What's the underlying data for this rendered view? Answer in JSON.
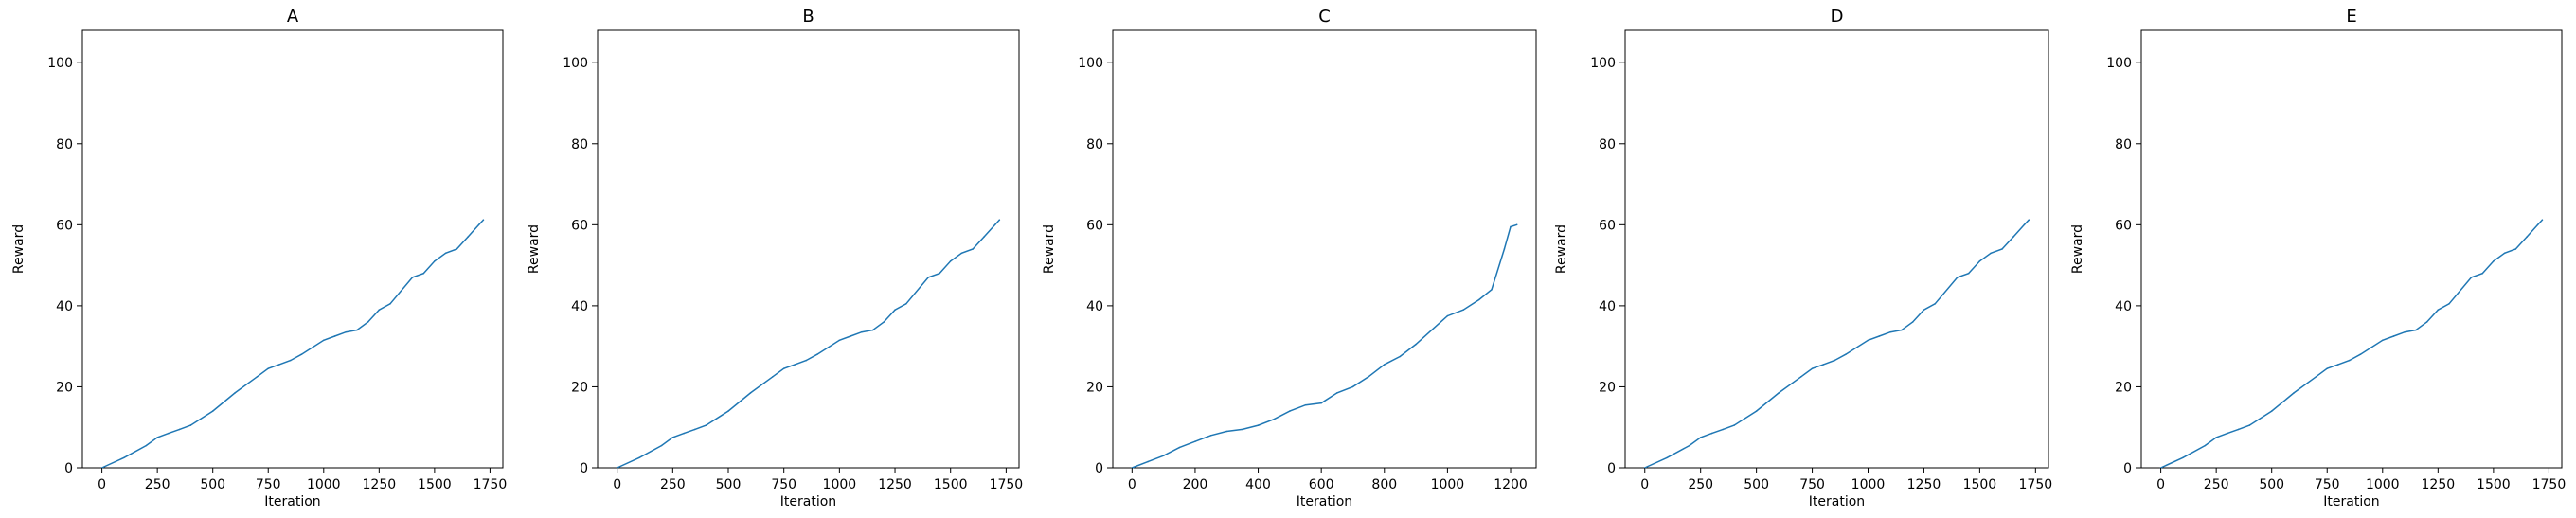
{
  "chart_data": [
    {
      "type": "line",
      "title": "A",
      "xlabel": "Iteration",
      "ylabel": "Reward",
      "xlim": [
        -88,
        1808
      ],
      "ylim": [
        0,
        108
      ],
      "xticks": [
        0,
        250,
        500,
        750,
        1000,
        1250,
        1500,
        1750
      ],
      "yticks": [
        0,
        20,
        40,
        60,
        80,
        100
      ],
      "grid": false,
      "legend": "none",
      "series": [
        {
          "color": "#1f77b4",
          "x": [
            0,
            100,
            200,
            250,
            300,
            350,
            400,
            500,
            600,
            700,
            750,
            800,
            850,
            900,
            1000,
            1050,
            1100,
            1150,
            1200,
            1250,
            1300,
            1400,
            1450,
            1500,
            1550,
            1600,
            1650,
            1700,
            1720
          ],
          "y": [
            0,
            2.5,
            5.5,
            7.5,
            8.5,
            9.5,
            10.5,
            14,
            18.5,
            22.5,
            24.5,
            25.5,
            26.5,
            28,
            31.5,
            32.5,
            33.5,
            34,
            36,
            39,
            40.5,
            47,
            48,
            51,
            53,
            54,
            57,
            60,
            61.2
          ]
        }
      ]
    },
    {
      "type": "line",
      "title": "B",
      "xlabel": "Iteration",
      "ylabel": "Reward",
      "xlim": [
        -88,
        1808
      ],
      "ylim": [
        0,
        108
      ],
      "xticks": [
        0,
        250,
        500,
        750,
        1000,
        1250,
        1500,
        1750
      ],
      "yticks": [
        0,
        20,
        40,
        60,
        80,
        100
      ],
      "grid": false,
      "legend": "none",
      "series": [
        {
          "color": "#1f77b4",
          "x": [
            0,
            100,
            200,
            250,
            300,
            350,
            400,
            500,
            600,
            700,
            750,
            800,
            850,
            900,
            1000,
            1050,
            1100,
            1150,
            1200,
            1250,
            1300,
            1400,
            1450,
            1500,
            1550,
            1600,
            1650,
            1700,
            1720
          ],
          "y": [
            0,
            2.5,
            5.5,
            7.5,
            8.5,
            9.5,
            10.5,
            14,
            18.5,
            22.5,
            24.5,
            25.5,
            26.5,
            28,
            31.5,
            32.5,
            33.5,
            34,
            36,
            39,
            40.5,
            47,
            48,
            51,
            53,
            54,
            57,
            60,
            61.2
          ]
        }
      ]
    },
    {
      "type": "line",
      "title": "C",
      "xlabel": "Iteration",
      "ylabel": "Reward",
      "xlim": [
        -61,
        1281
      ],
      "ylim": [
        0,
        108
      ],
      "xticks": [
        0,
        200,
        400,
        600,
        800,
        1000,
        1200
      ],
      "yticks": [
        0,
        20,
        40,
        60,
        80,
        100
      ],
      "grid": false,
      "legend": "none",
      "series": [
        {
          "color": "#1f77b4",
          "x": [
            0,
            50,
            100,
            150,
            200,
            250,
            300,
            350,
            400,
            450,
            500,
            550,
            600,
            650,
            700,
            750,
            800,
            850,
            900,
            950,
            1000,
            1050,
            1100,
            1140,
            1180,
            1200,
            1220
          ],
          "y": [
            0,
            1.5,
            3,
            5,
            6.5,
            8,
            9,
            9.5,
            10.5,
            12,
            14,
            15.5,
            16,
            18.5,
            20,
            22.5,
            25.5,
            27.5,
            30.5,
            34,
            37.5,
            39,
            41.5,
            44,
            54,
            59.5,
            60
          ]
        }
      ]
    },
    {
      "type": "line",
      "title": "D",
      "xlabel": "Iteration",
      "ylabel": "Reward",
      "xlim": [
        -88,
        1808
      ],
      "ylim": [
        0,
        108
      ],
      "xticks": [
        0,
        250,
        500,
        750,
        1000,
        1250,
        1500,
        1750
      ],
      "yticks": [
        0,
        20,
        40,
        60,
        80,
        100
      ],
      "grid": false,
      "legend": "none",
      "series": [
        {
          "color": "#1f77b4",
          "x": [
            0,
            100,
            200,
            250,
            300,
            350,
            400,
            500,
            600,
            700,
            750,
            800,
            850,
            900,
            1000,
            1050,
            1100,
            1150,
            1200,
            1250,
            1300,
            1400,
            1450,
            1500,
            1550,
            1600,
            1650,
            1700,
            1720
          ],
          "y": [
            0,
            2.5,
            5.5,
            7.5,
            8.5,
            9.5,
            10.5,
            14,
            18.5,
            22.5,
            24.5,
            25.5,
            26.5,
            28,
            31.5,
            32.5,
            33.5,
            34,
            36,
            39,
            40.5,
            47,
            48,
            51,
            53,
            54,
            57,
            60,
            61.2
          ]
        }
      ]
    },
    {
      "type": "line",
      "title": "E",
      "xlabel": "Iteration",
      "ylabel": "Reward",
      "xlim": [
        -88,
        1808
      ],
      "ylim": [
        0,
        108
      ],
      "xticks": [
        0,
        250,
        500,
        750,
        1000,
        1250,
        1500,
        1750
      ],
      "yticks": [
        0,
        20,
        40,
        60,
        80,
        100
      ],
      "grid": false,
      "legend": "none",
      "series": [
        {
          "color": "#1f77b4",
          "x": [
            0,
            100,
            200,
            250,
            300,
            350,
            400,
            500,
            600,
            700,
            750,
            800,
            850,
            900,
            1000,
            1050,
            1100,
            1150,
            1200,
            1250,
            1300,
            1400,
            1450,
            1500,
            1550,
            1600,
            1650,
            1700,
            1720
          ],
          "y": [
            0,
            2.5,
            5.5,
            7.5,
            8.5,
            9.5,
            10.5,
            14,
            18.5,
            22.5,
            24.5,
            25.5,
            26.5,
            28,
            31.5,
            32.5,
            33.5,
            34,
            36,
            39,
            40.5,
            47,
            48,
            51,
            53,
            54,
            57,
            60,
            61.2
          ]
        }
      ]
    }
  ]
}
